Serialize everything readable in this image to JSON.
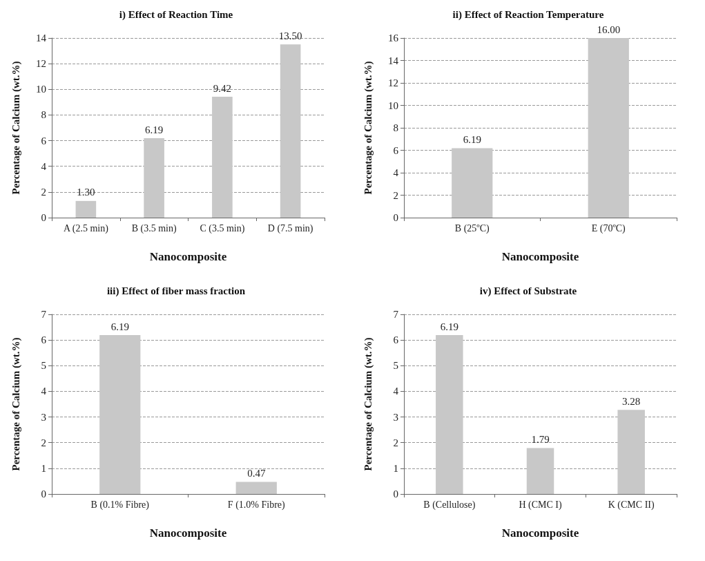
{
  "chart_data": [
    {
      "type": "bar",
      "title": "i) Effect of Reaction Time",
      "xlabel": "Nanocomposite",
      "ylabel": "Percentage of Calcium (wt.%)",
      "categories": [
        "A (2.5 min)",
        "B (3.5 min)",
        "C (3.5 min)",
        "D (7.5 min)"
      ],
      "values": [
        1.3,
        6.19,
        9.42,
        13.5
      ],
      "value_labels": [
        "1.30",
        "6.19",
        "9.42",
        "13.50"
      ],
      "color": "#c8c8c8",
      "ylim": [
        0,
        14
      ],
      "yticks": [
        0,
        2,
        4,
        6,
        8,
        10,
        12,
        14
      ],
      "grid": "y"
    },
    {
      "type": "bar",
      "title": "ii) Effect of Reaction Temperature",
      "xlabel": "Nanocomposite",
      "ylabel": "Percentage of Calcium (wt.%)",
      "categories": [
        "B (25ºC)",
        "E (70ºC)"
      ],
      "values": [
        6.19,
        16
      ],
      "value_labels": [
        "6.19",
        "16.00"
      ],
      "color": "#c8c8c8",
      "ylim": [
        0,
        16
      ],
      "yticks": [
        0,
        2,
        4,
        6,
        8,
        10,
        12,
        14,
        16
      ],
      "grid": "y"
    },
    {
      "type": "bar",
      "title": "iii) Effect of fiber mass fraction",
      "xlabel": "Nanocomposite",
      "ylabel": "Percentage of Calcium (wt.%)",
      "categories": [
        "B (0.1% Fibre)",
        "F (1.0% Fibre)"
      ],
      "values": [
        6.19,
        0.47
      ],
      "value_labels": [
        "6.19",
        "0.47"
      ],
      "color": "#c8c8c8",
      "ylim": [
        0,
        7
      ],
      "yticks": [
        0,
        1,
        2,
        3,
        4,
        5,
        6,
        7
      ],
      "grid": "y"
    },
    {
      "type": "bar",
      "title": "iv) Effect of Substrate",
      "xlabel": "Nanocomposite",
      "ylabel": "Percentage of Calcium (wt.%)",
      "categories": [
        "B (Cellulose)",
        "H (CMC I)",
        "K (CMC II)"
      ],
      "values": [
        6.19,
        1.79,
        3.28
      ],
      "value_labels": [
        "6.19",
        "1.79",
        "3.28"
      ],
      "color": "#c8c8c8",
      "ylim": [
        0,
        7
      ],
      "yticks": [
        0,
        1,
        2,
        3,
        4,
        5,
        6,
        7
      ],
      "grid": "y"
    }
  ]
}
